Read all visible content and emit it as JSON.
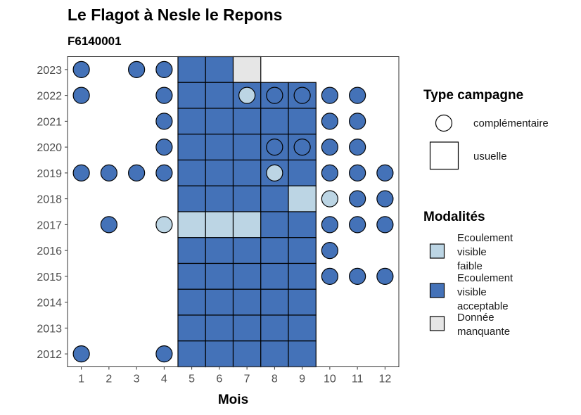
{
  "chart_data": {
    "type": "heatmap",
    "title": "Le Flagot à Nesle le Repons",
    "subtitle": "F6140001",
    "xlabel": "Mois",
    "ylabel": "",
    "x_ticks": [
      1,
      2,
      3,
      4,
      5,
      6,
      7,
      8,
      9,
      10,
      11,
      12
    ],
    "y_ticks": [
      2012,
      2013,
      2014,
      2015,
      2016,
      2017,
      2018,
      2019,
      2020,
      2021,
      2022,
      2023
    ],
    "xlim": [
      0.5,
      12.5
    ],
    "ylim": [
      2011.5,
      2023.5
    ],
    "colors": {
      "Ecoulement visible faible": "#bcd5e4",
      "Ecoulement visible acceptable": "#4472b8",
      "Donnée manquante": "#e6e6e6"
    },
    "usuelle": [
      {
        "year": 2023,
        "month": 5,
        "modalite": "Ecoulement visible acceptable"
      },
      {
        "year": 2023,
        "month": 6,
        "modalite": "Ecoulement visible acceptable"
      },
      {
        "year": 2023,
        "month": 7,
        "modalite": "Donnée manquante"
      },
      {
        "year": 2022,
        "month": 5,
        "modalite": "Ecoulement visible acceptable"
      },
      {
        "year": 2022,
        "month": 6,
        "modalite": "Ecoulement visible acceptable"
      },
      {
        "year": 2022,
        "month": 7,
        "modalite": "Ecoulement visible acceptable"
      },
      {
        "year": 2022,
        "month": 8,
        "modalite": "Ecoulement visible acceptable"
      },
      {
        "year": 2022,
        "month": 9,
        "modalite": "Ecoulement visible acceptable"
      },
      {
        "year": 2021,
        "month": 5,
        "modalite": "Ecoulement visible acceptable"
      },
      {
        "year": 2021,
        "month": 6,
        "modalite": "Ecoulement visible acceptable"
      },
      {
        "year": 2021,
        "month": 7,
        "modalite": "Ecoulement visible acceptable"
      },
      {
        "year": 2021,
        "month": 8,
        "modalite": "Ecoulement visible acceptable"
      },
      {
        "year": 2021,
        "month": 9,
        "modalite": "Ecoulement visible acceptable"
      },
      {
        "year": 2020,
        "month": 5,
        "modalite": "Ecoulement visible acceptable"
      },
      {
        "year": 2020,
        "month": 6,
        "modalite": "Ecoulement visible acceptable"
      },
      {
        "year": 2020,
        "month": 7,
        "modalite": "Ecoulement visible acceptable"
      },
      {
        "year": 2020,
        "month": 8,
        "modalite": "Ecoulement visible acceptable"
      },
      {
        "year": 2020,
        "month": 9,
        "modalite": "Ecoulement visible acceptable"
      },
      {
        "year": 2019,
        "month": 5,
        "modalite": "Ecoulement visible acceptable"
      },
      {
        "year": 2019,
        "month": 6,
        "modalite": "Ecoulement visible acceptable"
      },
      {
        "year": 2019,
        "month": 7,
        "modalite": "Ecoulement visible acceptable"
      },
      {
        "year": 2019,
        "month": 8,
        "modalite": "Ecoulement visible acceptable"
      },
      {
        "year": 2019,
        "month": 9,
        "modalite": "Ecoulement visible acceptable"
      },
      {
        "year": 2018,
        "month": 5,
        "modalite": "Ecoulement visible acceptable"
      },
      {
        "year": 2018,
        "month": 6,
        "modalite": "Ecoulement visible acceptable"
      },
      {
        "year": 2018,
        "month": 7,
        "modalite": "Ecoulement visible acceptable"
      },
      {
        "year": 2018,
        "month": 8,
        "modalite": "Ecoulement visible acceptable"
      },
      {
        "year": 2018,
        "month": 9,
        "modalite": "Ecoulement visible faible"
      },
      {
        "year": 2017,
        "month": 5,
        "modalite": "Ecoulement visible faible"
      },
      {
        "year": 2017,
        "month": 6,
        "modalite": "Ecoulement visible faible"
      },
      {
        "year": 2017,
        "month": 7,
        "modalite": "Ecoulement visible faible"
      },
      {
        "year": 2017,
        "month": 8,
        "modalite": "Ecoulement visible acceptable"
      },
      {
        "year": 2017,
        "month": 9,
        "modalite": "Ecoulement visible acceptable"
      },
      {
        "year": 2016,
        "month": 5,
        "modalite": "Ecoulement visible acceptable"
      },
      {
        "year": 2016,
        "month": 6,
        "modalite": "Ecoulement visible acceptable"
      },
      {
        "year": 2016,
        "month": 7,
        "modalite": "Ecoulement visible acceptable"
      },
      {
        "year": 2016,
        "month": 8,
        "modalite": "Ecoulement visible acceptable"
      },
      {
        "year": 2016,
        "month": 9,
        "modalite": "Ecoulement visible acceptable"
      },
      {
        "year": 2015,
        "month": 5,
        "modalite": "Ecoulement visible acceptable"
      },
      {
        "year": 2015,
        "month": 6,
        "modalite": "Ecoulement visible acceptable"
      },
      {
        "year": 2015,
        "month": 7,
        "modalite": "Ecoulement visible acceptable"
      },
      {
        "year": 2015,
        "month": 8,
        "modalite": "Ecoulement visible acceptable"
      },
      {
        "year": 2015,
        "month": 9,
        "modalite": "Ecoulement visible acceptable"
      },
      {
        "year": 2014,
        "month": 5,
        "modalite": "Ecoulement visible acceptable"
      },
      {
        "year": 2014,
        "month": 6,
        "modalite": "Ecoulement visible acceptable"
      },
      {
        "year": 2014,
        "month": 7,
        "modalite": "Ecoulement visible acceptable"
      },
      {
        "year": 2014,
        "month": 8,
        "modalite": "Ecoulement visible acceptable"
      },
      {
        "year": 2014,
        "month": 9,
        "modalite": "Ecoulement visible acceptable"
      },
      {
        "year": 2013,
        "month": 5,
        "modalite": "Ecoulement visible acceptable"
      },
      {
        "year": 2013,
        "month": 6,
        "modalite": "Ecoulement visible acceptable"
      },
      {
        "year": 2013,
        "month": 7,
        "modalite": "Ecoulement visible acceptable"
      },
      {
        "year": 2013,
        "month": 8,
        "modalite": "Ecoulement visible acceptable"
      },
      {
        "year": 2013,
        "month": 9,
        "modalite": "Ecoulement visible acceptable"
      },
      {
        "year": 2012,
        "month": 5,
        "modalite": "Ecoulement visible acceptable"
      },
      {
        "year": 2012,
        "month": 6,
        "modalite": "Ecoulement visible acceptable"
      },
      {
        "year": 2012,
        "month": 7,
        "modalite": "Ecoulement visible acceptable"
      },
      {
        "year": 2012,
        "month": 8,
        "modalite": "Ecoulement visible acceptable"
      },
      {
        "year": 2012,
        "month": 9,
        "modalite": "Ecoulement visible acceptable"
      }
    ],
    "complementaire": [
      {
        "year": 2023,
        "month": 1,
        "modalite": "Ecoulement visible acceptable"
      },
      {
        "year": 2023,
        "month": 3,
        "modalite": "Ecoulement visible acceptable"
      },
      {
        "year": 2023,
        "month": 4,
        "modalite": "Ecoulement visible acceptable"
      },
      {
        "year": 2022,
        "month": 1,
        "modalite": "Ecoulement visible acceptable"
      },
      {
        "year": 2022,
        "month": 4,
        "modalite": "Ecoulement visible acceptable"
      },
      {
        "year": 2022,
        "month": 7,
        "modalite": "Ecoulement visible faible"
      },
      {
        "year": 2022,
        "month": 8,
        "modalite": "Ecoulement visible acceptable"
      },
      {
        "year": 2022,
        "month": 9,
        "modalite": "Ecoulement visible acceptable"
      },
      {
        "year": 2022,
        "month": 10,
        "modalite": "Ecoulement visible acceptable"
      },
      {
        "year": 2022,
        "month": 11,
        "modalite": "Ecoulement visible acceptable"
      },
      {
        "year": 2021,
        "month": 4,
        "modalite": "Ecoulement visible acceptable"
      },
      {
        "year": 2021,
        "month": 10,
        "modalite": "Ecoulement visible acceptable"
      },
      {
        "year": 2021,
        "month": 11,
        "modalite": "Ecoulement visible acceptable"
      },
      {
        "year": 2020,
        "month": 4,
        "modalite": "Ecoulement visible acceptable"
      },
      {
        "year": 2020,
        "month": 8,
        "modalite": "Ecoulement visible acceptable"
      },
      {
        "year": 2020,
        "month": 9,
        "modalite": "Ecoulement visible acceptable"
      },
      {
        "year": 2020,
        "month": 10,
        "modalite": "Ecoulement visible acceptable"
      },
      {
        "year": 2020,
        "month": 11,
        "modalite": "Ecoulement visible acceptable"
      },
      {
        "year": 2019,
        "month": 1,
        "modalite": "Ecoulement visible acceptable"
      },
      {
        "year": 2019,
        "month": 2,
        "modalite": "Ecoulement visible acceptable"
      },
      {
        "year": 2019,
        "month": 3,
        "modalite": "Ecoulement visible acceptable"
      },
      {
        "year": 2019,
        "month": 4,
        "modalite": "Ecoulement visible acceptable"
      },
      {
        "year": 2019,
        "month": 8,
        "modalite": "Ecoulement visible faible"
      },
      {
        "year": 2019,
        "month": 10,
        "modalite": "Ecoulement visible acceptable"
      },
      {
        "year": 2019,
        "month": 11,
        "modalite": "Ecoulement visible acceptable"
      },
      {
        "year": 2019,
        "month": 12,
        "modalite": "Ecoulement visible acceptable"
      },
      {
        "year": 2018,
        "month": 10,
        "modalite": "Ecoulement visible faible"
      },
      {
        "year": 2018,
        "month": 11,
        "modalite": "Ecoulement visible acceptable"
      },
      {
        "year": 2018,
        "month": 12,
        "modalite": "Ecoulement visible acceptable"
      },
      {
        "year": 2017,
        "month": 2,
        "modalite": "Ecoulement visible acceptable"
      },
      {
        "year": 2017,
        "month": 4,
        "modalite": "Ecoulement visible faible"
      },
      {
        "year": 2017,
        "month": 10,
        "modalite": "Ecoulement visible acceptable"
      },
      {
        "year": 2017,
        "month": 11,
        "modalite": "Ecoulement visible acceptable"
      },
      {
        "year": 2017,
        "month": 12,
        "modalite": "Ecoulement visible acceptable"
      },
      {
        "year": 2016,
        "month": 10,
        "modalite": "Ecoulement visible acceptable"
      },
      {
        "year": 2015,
        "month": 10,
        "modalite": "Ecoulement visible acceptable"
      },
      {
        "year": 2015,
        "month": 11,
        "modalite": "Ecoulement visible acceptable"
      },
      {
        "year": 2015,
        "month": 12,
        "modalite": "Ecoulement visible acceptable"
      },
      {
        "year": 2012,
        "month": 1,
        "modalite": "Ecoulement visible acceptable"
      },
      {
        "year": 2012,
        "month": 4,
        "modalite": "Ecoulement visible acceptable"
      }
    ],
    "legend": {
      "type_title": "Type campagne",
      "type_items": [
        "complémentaire",
        "usuelle"
      ],
      "modalites_title": "Modalités",
      "modalites_items": [
        {
          "lines": [
            "Ecoulement",
            "visible",
            "faible"
          ],
          "key": "Ecoulement visible faible"
        },
        {
          "lines": [
            "Ecoulement",
            "visible",
            "acceptable"
          ],
          "key": "Ecoulement visible acceptable"
        },
        {
          "lines": [
            "Donnée",
            "manquante"
          ],
          "key": "Donnée manquante"
        }
      ],
      "placement": "right"
    }
  }
}
